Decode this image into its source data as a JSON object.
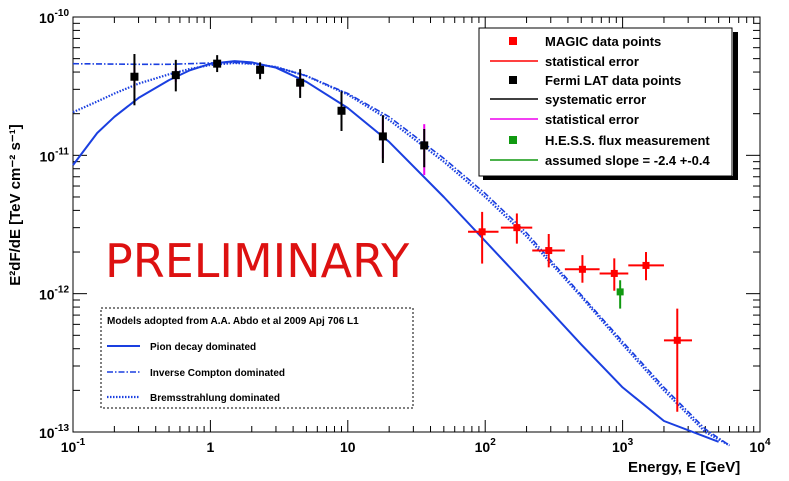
{
  "chart_data": {
    "type": "scatter",
    "title": "",
    "xlabel": "Energy, E [GeV]",
    "ylabel": "E²dF/dE [TeV cm⁻² s⁻¹]",
    "xscale": "log",
    "yscale": "log",
    "xlim": [
      0.1,
      10000
    ],
    "ylim": [
      1e-13,
      1e-10
    ],
    "x_ticks": [
      {
        "value": 0.1,
        "base": "10",
        "exp": "-1"
      },
      {
        "value": 1,
        "base": "1",
        "exp": ""
      },
      {
        "value": 10,
        "base": "10",
        "exp": ""
      },
      {
        "value": 100,
        "base": "10",
        "exp": "2"
      },
      {
        "value": 1000,
        "base": "10",
        "exp": "3"
      },
      {
        "value": 10000,
        "base": "10",
        "exp": "4"
      }
    ],
    "y_ticks": [
      {
        "value": 1e-13,
        "base": "10",
        "exp": "-13"
      },
      {
        "value": 1e-12,
        "base": "10",
        "exp": "-12"
      },
      {
        "value": 1e-11,
        "base": "10",
        "exp": "-11"
      },
      {
        "value": 1e-10,
        "base": "10",
        "exp": "-10"
      }
    ],
    "annotation": "PRELIMINARY",
    "series": [
      {
        "name": "MAGIC data points",
        "color": "#ff0000",
        "points": [
          {
            "x": 95,
            "y": 2.8e-12,
            "xlo": 75,
            "xhi": 125,
            "ylo": 1.65e-12,
            "yhi": 3.9e-12
          },
          {
            "x": 170,
            "y": 3e-12,
            "xlo": 130,
            "xhi": 220,
            "ylo": 2.3e-12,
            "yhi": 3.8e-12
          },
          {
            "x": 290,
            "y": 2.05e-12,
            "xlo": 220,
            "xhi": 380,
            "ylo": 1.55e-12,
            "yhi": 2.7e-12
          },
          {
            "x": 510,
            "y": 1.5e-12,
            "xlo": 380,
            "xhi": 680,
            "ylo": 1.2e-12,
            "yhi": 1.9e-12
          },
          {
            "x": 870,
            "y": 1.4e-12,
            "xlo": 680,
            "xhi": 1100,
            "ylo": 1.05e-12,
            "yhi": 1.8e-12
          },
          {
            "x": 1480,
            "y": 1.6e-12,
            "xlo": 1100,
            "xhi": 2000,
            "ylo": 1.25e-12,
            "yhi": 2e-12
          },
          {
            "x": 2500,
            "y": 4.6e-13,
            "xlo": 2000,
            "xhi": 3200,
            "ylo": 1.4e-13,
            "yhi": 7.8e-13
          }
        ]
      },
      {
        "name": "Fermi LAT data points",
        "color": "#000000",
        "points": [
          {
            "x": 0.28,
            "y": 3.7e-11,
            "sys_lo": 2.3e-11,
            "sys_hi": 5.4e-11,
            "stat_lo": 3e-11,
            "stat_hi": 4.4e-11
          },
          {
            "x": 0.56,
            "y": 3.8e-11,
            "sys_lo": 2.9e-11,
            "sys_hi": 4.9e-11,
            "stat_lo": 3.4e-11,
            "stat_hi": 4.3e-11
          },
          {
            "x": 1.12,
            "y": 4.6e-11,
            "sys_lo": 4e-11,
            "sys_hi": 5.3e-11,
            "stat_lo": 4.3e-11,
            "stat_hi": 4.9e-11
          },
          {
            "x": 2.3,
            "y": 4.15e-11,
            "sys_lo": 3.55e-11,
            "sys_hi": 4.7e-11,
            "stat_lo": 3.9e-11,
            "stat_hi": 4.45e-11
          },
          {
            "x": 4.5,
            "y": 3.35e-11,
            "sys_lo": 2.6e-11,
            "sys_hi": 4.2e-11,
            "stat_lo": 3e-11,
            "stat_hi": 3.8e-11
          },
          {
            "x": 9.0,
            "y": 2.1e-11,
            "sys_lo": 1.5e-11,
            "sys_hi": 2.9e-11,
            "stat_lo": 1.7e-11,
            "stat_hi": 2.6e-11
          },
          {
            "x": 18,
            "y": 1.37e-11,
            "sys_lo": 8.8e-12,
            "sys_hi": 1.95e-11,
            "stat_lo": 9.5e-12,
            "stat_hi": 1.85e-11
          },
          {
            "x": 36,
            "y": 1.18e-11,
            "sys_lo": 8.2e-12,
            "sys_hi": 1.55e-11,
            "stat_lo": 7.2e-12,
            "stat_hi": 1.68e-11
          }
        ]
      },
      {
        "name": "H.E.S.S. flux measurement",
        "color": "#119911",
        "points": [
          {
            "x": 960,
            "y": 1.03e-12,
            "ylo": 7.8e-13,
            "yhi": 1.25e-12
          }
        ],
        "slope_label": "assumed slope = -2.4 +-0.4"
      }
    ],
    "models": {
      "title": "Models adopted from A.A. Abdo et al 2009 Apj 706 L1",
      "curves": [
        {
          "name": "Pion decay dominated",
          "style": "solid",
          "x": [
            0.1,
            0.15,
            0.2,
            0.3,
            0.5,
            0.7,
            1.0,
            1.5,
            2.0,
            3.0,
            5.0,
            10,
            20,
            50,
            100,
            200,
            500,
            1000,
            2000,
            5000
          ],
          "y": [
            8.5e-12,
            1.45e-11,
            1.9e-11,
            2.6e-11,
            3.5e-11,
            4.1e-11,
            4.6e-11,
            4.8e-11,
            4.7e-11,
            4.3e-11,
            3.4e-11,
            2.2e-11,
            1.25e-11,
            5e-12,
            2.4e-12,
            1.15e-12,
            4.3e-13,
            2.1e-13,
            1.2e-13,
            8.5e-14
          ]
        },
        {
          "name": "Inverse Compton dominated",
          "style": "dashdot",
          "x": [
            0.1,
            0.3,
            0.5,
            1.0,
            1.5,
            2.0,
            3.0,
            5.0,
            10,
            20,
            50,
            100,
            200,
            500,
            1000,
            2000,
            4000,
            6000
          ],
          "y": [
            4.6e-11,
            4.55e-11,
            4.55e-11,
            4.65e-11,
            4.7e-11,
            4.6e-11,
            4.35e-11,
            3.75e-11,
            2.8e-11,
            1.9e-11,
            9.5e-12,
            5.3e-12,
            2.75e-12,
            9.8e-13,
            4.5e-13,
            2.1e-13,
            1.05e-13,
            8e-14
          ]
        },
        {
          "name": "Bremsstrahlung dominated",
          "style": "dotted",
          "x": [
            0.1,
            0.15,
            0.2,
            0.3,
            0.5,
            0.7,
            1.0,
            1.5,
            2.0,
            3.0,
            5.0,
            10,
            20,
            50,
            100,
            200,
            500,
            1000,
            2000,
            4000,
            6000
          ],
          "y": [
            2.05e-11,
            2.45e-11,
            2.8e-11,
            3.3e-11,
            3.85e-11,
            4.2e-11,
            4.5e-11,
            4.65e-11,
            4.6e-11,
            4.35e-11,
            3.75e-11,
            2.75e-11,
            1.8e-11,
            9e-12,
            5e-12,
            2.6e-12,
            9.5e-13,
            4.3e-13,
            2e-13,
            1e-13,
            8e-14
          ]
        }
      ]
    },
    "legend": {
      "position": "top-right",
      "entries": [
        {
          "label": "MAGIC data points",
          "marker": "square",
          "color": "#ff0000"
        },
        {
          "label": "statistical error",
          "marker": "line",
          "color": "#ff0000"
        },
        {
          "label": "Fermi LAT data points",
          "marker": "square",
          "color": "#000000"
        },
        {
          "label": "systematic error",
          "marker": "line",
          "color": "#000000"
        },
        {
          "label": "statistical error",
          "marker": "line",
          "color": "#ee00ee"
        },
        {
          "label": "H.E.S.S. flux measurement",
          "marker": "square",
          "color": "#119911"
        },
        {
          "label": "assumed slope = -2.4 +-0.4",
          "marker": "line",
          "color": "#119911"
        }
      ]
    },
    "colors": {
      "model": "#1a3fe0",
      "fermi_stat": "#ee00ee",
      "prelim": "#dd1111"
    }
  }
}
